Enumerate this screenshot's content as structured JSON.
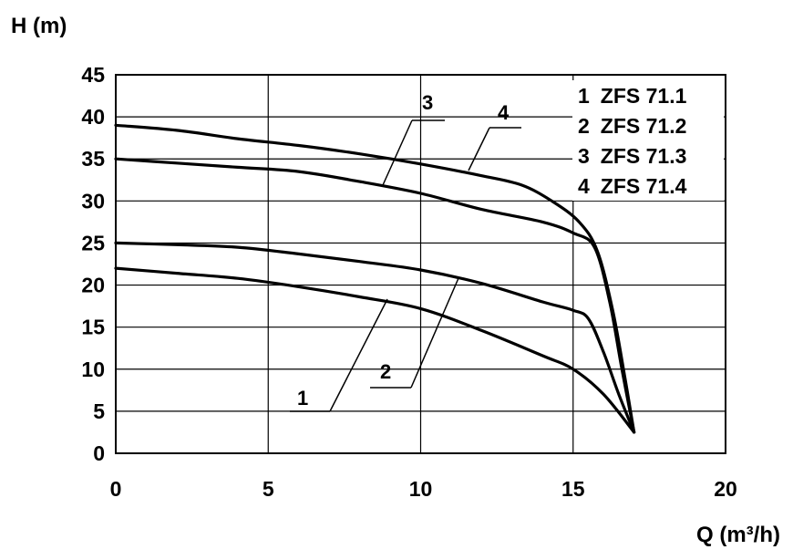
{
  "chart_data": {
    "type": "line",
    "title": "",
    "xlabel": "Q (m³/h)",
    "ylabel": "H (m)",
    "xlim": [
      0,
      20
    ],
    "ylim": [
      0,
      45
    ],
    "x_ticks": [
      "0",
      "5",
      "10",
      "15",
      "20"
    ],
    "y_ticks": [
      "0",
      "5",
      "10",
      "15",
      "20",
      "25",
      "30",
      "35",
      "40",
      "45"
    ],
    "grid": true,
    "legend_placement": "top-right",
    "legend": [
      {
        "id": "1",
        "label": "ZFS 71.1"
      },
      {
        "id": "2",
        "label": "ZFS 71.2"
      },
      {
        "id": "3",
        "label": "ZFS 71.3"
      },
      {
        "id": "4",
        "label": "ZFS 71.4"
      }
    ],
    "series": [
      {
        "id": "1",
        "label": "1",
        "points": [
          [
            0,
            22
          ],
          [
            2,
            21.4
          ],
          [
            4,
            20.8
          ],
          [
            6,
            19.8
          ],
          [
            8,
            18.6
          ],
          [
            10,
            17.2
          ],
          [
            12,
            14.6
          ],
          [
            14,
            11.6
          ],
          [
            15,
            10
          ],
          [
            16,
            7
          ],
          [
            17,
            2.5
          ]
        ]
      },
      {
        "id": "2",
        "label": "2",
        "points": [
          [
            0,
            25
          ],
          [
            2,
            24.8
          ],
          [
            4,
            24.5
          ],
          [
            6,
            23.7
          ],
          [
            8,
            22.8
          ],
          [
            10,
            21.8
          ],
          [
            12,
            20.2
          ],
          [
            14,
            18
          ],
          [
            15,
            17
          ],
          [
            15.5,
            16
          ],
          [
            16,
            12
          ],
          [
            16.5,
            7
          ],
          [
            17,
            2.5
          ]
        ]
      },
      {
        "id": "3",
        "label": "3",
        "points": [
          [
            0,
            35
          ],
          [
            2,
            34.5
          ],
          [
            4,
            34
          ],
          [
            6,
            33.5
          ],
          [
            8,
            32.3
          ],
          [
            10,
            30.9
          ],
          [
            12,
            29
          ],
          [
            14,
            27.5
          ],
          [
            15,
            26.2
          ],
          [
            15.7,
            24.5
          ],
          [
            16.2,
            18
          ],
          [
            16.6,
            10
          ],
          [
            17,
            2.5
          ]
        ]
      },
      {
        "id": "4",
        "label": "4",
        "points": [
          [
            0,
            39
          ],
          [
            2,
            38.4
          ],
          [
            4,
            37.4
          ],
          [
            6,
            36.6
          ],
          [
            8,
            35.6
          ],
          [
            10,
            34.4
          ],
          [
            12,
            33
          ],
          [
            13.3,
            31.9
          ],
          [
            14.3,
            30
          ],
          [
            15.2,
            27.5
          ],
          [
            15.8,
            24
          ],
          [
            16.3,
            17
          ],
          [
            16.7,
            9
          ],
          [
            17,
            2.5
          ]
        ]
      }
    ]
  }
}
